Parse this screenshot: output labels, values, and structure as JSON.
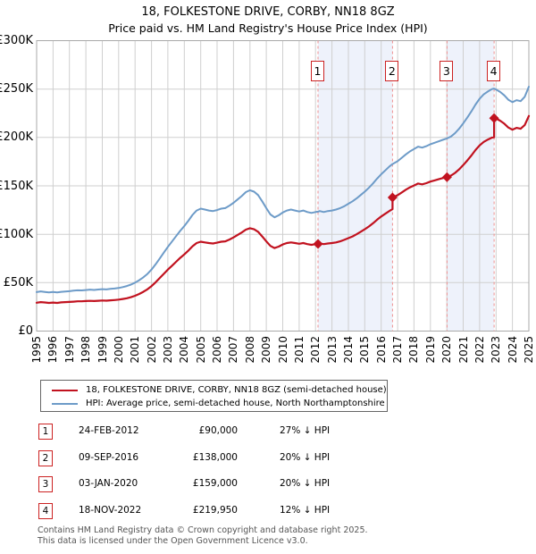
{
  "header": {
    "title": "18, FOLKESTONE DRIVE, CORBY, NN18 8GZ",
    "subtitle": "Price paid vs. HM Land Registry's House Price Index (HPI)"
  },
  "legend": {
    "items": [
      {
        "label": "18, FOLKESTONE DRIVE, CORBY, NN18 8GZ (semi-detached house)",
        "color": "#c1121f"
      },
      {
        "label": "HPI: Average price, semi-detached house, North Northamptonshire",
        "color": "#6d9bc8"
      }
    ]
  },
  "sales": [
    {
      "label": "1",
      "date": "24-FEB-2012",
      "price": "£90,000",
      "vs_hpi": "27% ↓ HPI",
      "year_decimal": 2012.15,
      "price_k": 90
    },
    {
      "label": "2",
      "date": "09-SEP-2016",
      "price": "£138,000",
      "vs_hpi": "20% ↓ HPI",
      "year_decimal": 2016.69,
      "price_k": 138
    },
    {
      "label": "3",
      "date": "03-JAN-2020",
      "price": "£159,000",
      "vs_hpi": "20% ↓ HPI",
      "year_decimal": 2020.01,
      "price_k": 159
    },
    {
      "label": "4",
      "date": "18-NOV-2022",
      "price": "£219,950",
      "vs_hpi": "12% ↓ HPI",
      "year_decimal": 2022.88,
      "price_k": 219.95
    }
  ],
  "footer": {
    "line1": "Contains HM Land Registry data © Crown copyright and database right 2025.",
    "line2": "This data is licensed under the Open Government Licence v3.0."
  },
  "chart_data": {
    "type": "line",
    "x_range": [
      1995,
      2025
    ],
    "y_range_k": [
      0,
      300
    ],
    "grid": true,
    "band_color": "#eef2fb",
    "dashed_line_color": "#ef8f8f",
    "grid_color": "#cfcfcf",
    "border_color": "#a9a9a9",
    "sale_marker_color": "#c1121f",
    "shaded_bands_years": [
      [
        2012.15,
        2016.69
      ],
      [
        2020.01,
        2022.88
      ]
    ],
    "y_ticks": [
      {
        "value_k": 300,
        "label": "£300K"
      },
      {
        "value_k": 250,
        "label": "£250K"
      },
      {
        "value_k": 200,
        "label": "£200K"
      },
      {
        "value_k": 150,
        "label": "£150K"
      },
      {
        "value_k": 100,
        "label": "£100K"
      },
      {
        "value_k": 50,
        "label": "£50K"
      },
      {
        "value_k": 0,
        "label": "£0"
      }
    ],
    "x_ticks": [
      "1995",
      "1996",
      "1997",
      "1998",
      "1999",
      "2000",
      "2001",
      "2002",
      "2003",
      "2004",
      "2005",
      "2006",
      "2007",
      "2008",
      "2009",
      "2010",
      "2011",
      "2012",
      "2013",
      "2014",
      "2015",
      "2016",
      "2017",
      "2018",
      "2019",
      "2020",
      "2021",
      "2022",
      "2023",
      "2024",
      "2025"
    ],
    "series": [
      {
        "name": "18, FOLKESTONE DRIVE, CORBY, NN18 8GZ (semi-detached house)",
        "color": "#c1121f",
        "width": 2.2,
        "points_year_priceK": [
          [
            1995.0,
            29.3
          ],
          [
            1995.25,
            29.9
          ],
          [
            1995.5,
            29.5
          ],
          [
            1995.75,
            29.1
          ],
          [
            1996.0,
            29.4
          ],
          [
            1996.25,
            29.1
          ],
          [
            1996.5,
            29.6
          ],
          [
            1996.75,
            29.9
          ],
          [
            1997.0,
            30.1
          ],
          [
            1997.25,
            30.4
          ],
          [
            1997.5,
            30.7
          ],
          [
            1997.75,
            30.7
          ],
          [
            1998.0,
            31.0
          ],
          [
            1998.25,
            31.2
          ],
          [
            1998.5,
            31.0
          ],
          [
            1998.75,
            31.3
          ],
          [
            1999.0,
            31.6
          ],
          [
            1999.25,
            31.4
          ],
          [
            1999.5,
            31.8
          ],
          [
            1999.75,
            32.0
          ],
          [
            2000.0,
            32.5
          ],
          [
            2000.25,
            33.1
          ],
          [
            2000.5,
            33.9
          ],
          [
            2000.75,
            35.0
          ],
          [
            2001.0,
            36.5
          ],
          [
            2001.25,
            38.3
          ],
          [
            2001.5,
            40.5
          ],
          [
            2001.75,
            43.1
          ],
          [
            2002.0,
            46.4
          ],
          [
            2002.25,
            50.4
          ],
          [
            2002.5,
            54.8
          ],
          [
            2002.75,
            59.1
          ],
          [
            2003.0,
            63.5
          ],
          [
            2003.25,
            67.5
          ],
          [
            2003.5,
            71.5
          ],
          [
            2003.75,
            75.6
          ],
          [
            2004.0,
            79.2
          ],
          [
            2004.25,
            83.2
          ],
          [
            2004.5,
            87.6
          ],
          [
            2004.75,
            90.9
          ],
          [
            2005.0,
            92.3
          ],
          [
            2005.25,
            91.6
          ],
          [
            2005.5,
            90.9
          ],
          [
            2005.75,
            90.5
          ],
          [
            2006.0,
            91.3
          ],
          [
            2006.25,
            92.3
          ],
          [
            2006.5,
            92.7
          ],
          [
            2006.75,
            94.5
          ],
          [
            2007.0,
            96.7
          ],
          [
            2007.25,
            99.3
          ],
          [
            2007.5,
            101.8
          ],
          [
            2007.75,
            104.8
          ],
          [
            2008.0,
            106.2
          ],
          [
            2008.25,
            105.1
          ],
          [
            2008.5,
            102.6
          ],
          [
            2008.75,
            97.8
          ],
          [
            2009.0,
            92.7
          ],
          [
            2009.25,
            88.0
          ],
          [
            2009.5,
            85.8
          ],
          [
            2009.75,
            87.2
          ],
          [
            2010.0,
            89.4
          ],
          [
            2010.25,
            90.9
          ],
          [
            2010.5,
            91.6
          ],
          [
            2010.75,
            90.9
          ],
          [
            2011.0,
            90.2
          ],
          [
            2011.25,
            90.9
          ],
          [
            2011.5,
            89.8
          ],
          [
            2011.75,
            89.1
          ],
          [
            2012.0,
            89.8
          ],
          [
            2012.15,
            90.0
          ],
          [
            2012.25,
            90.5
          ],
          [
            2012.5,
            89.8
          ],
          [
            2012.75,
            90.5
          ],
          [
            2013.0,
            90.9
          ],
          [
            2013.25,
            91.6
          ],
          [
            2013.5,
            92.7
          ],
          [
            2013.75,
            94.2
          ],
          [
            2014.0,
            96.0
          ],
          [
            2014.25,
            97.8
          ],
          [
            2014.5,
            100.0
          ],
          [
            2014.75,
            102.6
          ],
          [
            2015.0,
            105.1
          ],
          [
            2015.25,
            108.0
          ],
          [
            2015.5,
            111.3
          ],
          [
            2015.75,
            115.0
          ],
          [
            2016.0,
            118.3
          ],
          [
            2016.25,
            121.2
          ],
          [
            2016.5,
            124.1
          ],
          [
            2016.69,
            125.9
          ],
          [
            2016.69,
            138.0
          ],
          [
            2017.0,
            140.4
          ],
          [
            2017.25,
            143.2
          ],
          [
            2017.5,
            146.0
          ],
          [
            2017.75,
            148.4
          ],
          [
            2018.0,
            150.4
          ],
          [
            2018.25,
            152.4
          ],
          [
            2018.5,
            151.6
          ],
          [
            2018.75,
            152.8
          ],
          [
            2019.0,
            154.4
          ],
          [
            2019.25,
            155.6
          ],
          [
            2019.5,
            156.8
          ],
          [
            2019.75,
            158.0
          ],
          [
            2020.01,
            159.0
          ],
          [
            2020.25,
            160.6
          ],
          [
            2020.5,
            163.4
          ],
          [
            2020.75,
            167.0
          ],
          [
            2021.0,
            171.4
          ],
          [
            2021.25,
            176.2
          ],
          [
            2021.5,
            181.4
          ],
          [
            2021.75,
            187.0
          ],
          [
            2022.0,
            191.8
          ],
          [
            2022.25,
            195.4
          ],
          [
            2022.5,
            197.8
          ],
          [
            2022.75,
            199.8
          ],
          [
            2022.88,
            200.2
          ],
          [
            2022.88,
            219.95
          ],
          [
            2023.0,
            219.6
          ],
          [
            2023.25,
            217.3
          ],
          [
            2023.5,
            214.2
          ],
          [
            2023.75,
            210.3
          ],
          [
            2024.0,
            208.1
          ],
          [
            2024.25,
            209.9
          ],
          [
            2024.5,
            209.0
          ],
          [
            2024.75,
            212.9
          ],
          [
            2025.0,
            222.2
          ]
        ]
      },
      {
        "name": "HPI: Average price, semi-detached house, North Northamptonshire",
        "color": "#6d9bc8",
        "width": 2,
        "points_year_priceK": [
          [
            1995.0,
            40.2
          ],
          [
            1995.25,
            41.0
          ],
          [
            1995.5,
            40.4
          ],
          [
            1995.75,
            39.9
          ],
          [
            1996.0,
            40.3
          ],
          [
            1996.25,
            39.9
          ],
          [
            1996.5,
            40.5
          ],
          [
            1996.75,
            40.9
          ],
          [
            1997.0,
            41.2
          ],
          [
            1997.25,
            41.7
          ],
          [
            1997.5,
            42.1
          ],
          [
            1997.75,
            42.0
          ],
          [
            1998.0,
            42.4
          ],
          [
            1998.25,
            42.8
          ],
          [
            1998.5,
            42.5
          ],
          [
            1998.75,
            42.9
          ],
          [
            1999.0,
            43.3
          ],
          [
            1999.25,
            43.0
          ],
          [
            1999.5,
            43.6
          ],
          [
            1999.75,
            43.9
          ],
          [
            2000.0,
            44.5
          ],
          [
            2000.25,
            45.4
          ],
          [
            2000.5,
            46.5
          ],
          [
            2000.75,
            48.0
          ],
          [
            2001.0,
            50.0
          ],
          [
            2001.25,
            52.5
          ],
          [
            2001.5,
            55.5
          ],
          [
            2001.75,
            59.0
          ],
          [
            2002.0,
            63.5
          ],
          [
            2002.25,
            69.0
          ],
          [
            2002.5,
            75.0
          ],
          [
            2002.75,
            81.0
          ],
          [
            2003.0,
            87.0
          ],
          [
            2003.25,
            92.5
          ],
          [
            2003.5,
            98.0
          ],
          [
            2003.75,
            103.5
          ],
          [
            2004.0,
            108.5
          ],
          [
            2004.25,
            114.0
          ],
          [
            2004.5,
            120.0
          ],
          [
            2004.75,
            124.5
          ],
          [
            2005.0,
            126.5
          ],
          [
            2005.25,
            125.5
          ],
          [
            2005.5,
            124.5
          ],
          [
            2005.75,
            124.0
          ],
          [
            2006.0,
            125.0
          ],
          [
            2006.25,
            126.5
          ],
          [
            2006.5,
            127.0
          ],
          [
            2006.75,
            129.5
          ],
          [
            2007.0,
            132.5
          ],
          [
            2007.25,
            136.0
          ],
          [
            2007.5,
            139.5
          ],
          [
            2007.75,
            143.5
          ],
          [
            2008.0,
            145.5
          ],
          [
            2008.25,
            144.0
          ],
          [
            2008.5,
            140.5
          ],
          [
            2008.75,
            134.0
          ],
          [
            2009.0,
            127.0
          ],
          [
            2009.25,
            120.5
          ],
          [
            2009.5,
            117.5
          ],
          [
            2009.75,
            119.5
          ],
          [
            2010.0,
            122.5
          ],
          [
            2010.25,
            124.5
          ],
          [
            2010.5,
            125.5
          ],
          [
            2010.75,
            124.5
          ],
          [
            2011.0,
            123.5
          ],
          [
            2011.25,
            124.5
          ],
          [
            2011.5,
            123.0
          ],
          [
            2011.75,
            122.0
          ],
          [
            2012.0,
            123.0
          ],
          [
            2012.15,
            123.3
          ],
          [
            2012.25,
            124.0
          ],
          [
            2012.5,
            123.0
          ],
          [
            2012.75,
            124.0
          ],
          [
            2013.0,
            124.5
          ],
          [
            2013.25,
            125.5
          ],
          [
            2013.5,
            127.0
          ],
          [
            2013.75,
            129.0
          ],
          [
            2014.0,
            131.5
          ],
          [
            2014.25,
            134.0
          ],
          [
            2014.5,
            137.0
          ],
          [
            2014.75,
            140.5
          ],
          [
            2015.0,
            144.0
          ],
          [
            2015.25,
            148.0
          ],
          [
            2015.5,
            152.5
          ],
          [
            2015.75,
            157.5
          ],
          [
            2016.0,
            162.0
          ],
          [
            2016.25,
            166.0
          ],
          [
            2016.5,
            170.0
          ],
          [
            2016.69,
            172.5
          ],
          [
            2017.0,
            175.5
          ],
          [
            2017.25,
            179.0
          ],
          [
            2017.5,
            182.5
          ],
          [
            2017.75,
            185.5
          ],
          [
            2018.0,
            188.0
          ],
          [
            2018.25,
            190.5
          ],
          [
            2018.5,
            189.5
          ],
          [
            2018.75,
            191.0
          ],
          [
            2019.0,
            193.0
          ],
          [
            2019.25,
            194.5
          ],
          [
            2019.5,
            196.0
          ],
          [
            2019.75,
            197.5
          ],
          [
            2020.01,
            199.0
          ],
          [
            2020.25,
            201.0
          ],
          [
            2020.5,
            204.5
          ],
          [
            2020.75,
            209.0
          ],
          [
            2021.0,
            214.5
          ],
          [
            2021.25,
            220.5
          ],
          [
            2021.5,
            227.0
          ],
          [
            2021.75,
            234.0
          ],
          [
            2022.0,
            240.0
          ],
          [
            2022.25,
            244.5
          ],
          [
            2022.5,
            247.5
          ],
          [
            2022.75,
            250.0
          ],
          [
            2022.88,
            250.5
          ],
          [
            2023.0,
            249.5
          ],
          [
            2023.25,
            247.0
          ],
          [
            2023.5,
            243.5
          ],
          [
            2023.75,
            239.0
          ],
          [
            2024.0,
            236.5
          ],
          [
            2024.25,
            238.5
          ],
          [
            2024.5,
            237.5
          ],
          [
            2024.75,
            242.0
          ],
          [
            2025.0,
            252.5
          ]
        ]
      }
    ]
  }
}
